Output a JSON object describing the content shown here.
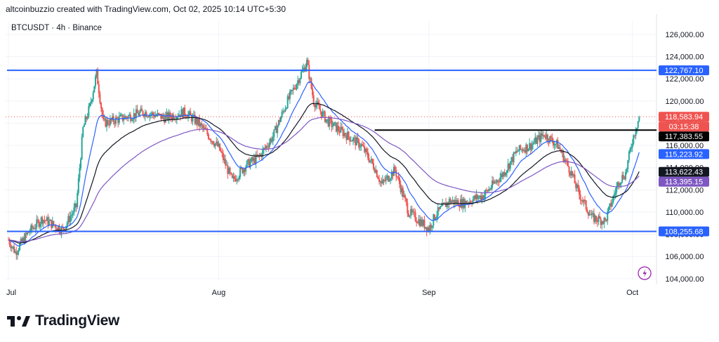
{
  "header": {
    "credit": "altcoinbuzzio created with TradingView.com, Oct 02, 2025 10:14 UTC+5:30",
    "symbol": "BTCUSDT · 4h · Binance"
  },
  "brand": {
    "name": "TradingView",
    "icon": "tradingview-logo-icon"
  },
  "alert_icon": "lightning-bolt-icon",
  "chart_data": {
    "type": "candlestick",
    "title": "BTCUSDT · 4h · Binance",
    "xlabel": "",
    "ylabel": "",
    "ylim": [
      103800,
      127200
    ],
    "x_ticks": [
      "Jul",
      "Aug",
      "Sep",
      "Oct"
    ],
    "y_ticks": [
      "104,000.00",
      "106,000.00",
      "108,000.00",
      "110,000.00",
      "112,000.00",
      "114,000.00",
      "116,000.00",
      "118,000.00",
      "120,000.00",
      "122,000.00",
      "124,000.00",
      "126,000.00"
    ],
    "grid": true,
    "colors": {
      "up": "#26a69a",
      "down": "#ef5350",
      "ema_fast": "#2962ff",
      "ema_mid": "#131722",
      "ema_slow": "#7e57c2",
      "level": "#2962ff",
      "price": "#ef5350"
    },
    "price_path": [
      [
        "Jul 1",
        107500
      ],
      [
        "Jul 2",
        106400
      ],
      [
        "Jul 4",
        108200
      ],
      [
        "Jul 6",
        109400
      ],
      [
        "Jul 9",
        108400
      ],
      [
        "Jul 11",
        110500
      ],
      [
        "Jul 12",
        117500
      ],
      [
        "Jul 13",
        119500
      ],
      [
        "Jul 14",
        122500
      ],
      [
        "Jul 15",
        118000
      ],
      [
        "Jul 18",
        118500
      ],
      [
        "Jul 21",
        119000
      ],
      [
        "Jul 24",
        118500
      ],
      [
        "Jul 27",
        119000
      ],
      [
        "Jul 29",
        118000
      ],
      [
        "Aug 1",
        115800
      ],
      [
        "Aug 3",
        112800
      ],
      [
        "Aug 5",
        114200
      ],
      [
        "Aug 7",
        115000
      ],
      [
        "Aug 9",
        116800
      ],
      [
        "Aug 11",
        119800
      ],
      [
        "Aug 14",
        123500
      ],
      [
        "Aug 15",
        120000
      ],
      [
        "Aug 17",
        118200
      ],
      [
        "Aug 19",
        117300
      ],
      [
        "Aug 22",
        116000
      ],
      [
        "Aug 24",
        114000
      ],
      [
        "Aug 25",
        112500
      ],
      [
        "Aug 27",
        113800
      ],
      [
        "Aug 29",
        110000
      ],
      [
        "Sep 1",
        108500
      ],
      [
        "Sep 2",
        109800
      ],
      [
        "Sep 4",
        111000
      ],
      [
        "Sep 6",
        110800
      ],
      [
        "Sep 9",
        111500
      ],
      [
        "Sep 12",
        113500
      ],
      [
        "Sep 14",
        115500
      ],
      [
        "Sep 16",
        116000
      ],
      [
        "Sep 18",
        117000
      ],
      [
        "Sep 20",
        116000
      ],
      [
        "Sep 22",
        113500
      ],
      [
        "Sep 23",
        111800
      ],
      [
        "Sep 25",
        109500
      ],
      [
        "Sep 27",
        109200
      ],
      [
        "Sep 29",
        112800
      ],
      [
        "Sep 30",
        113500
      ],
      [
        "Oct 1",
        116500
      ],
      [
        "Oct 2",
        118584
      ]
    ],
    "levels": [
      {
        "label": "122,767.10",
        "value": 122767.1,
        "color": "#2962ff"
      },
      {
        "label": "108,255.68",
        "value": 108255.68,
        "color": "#2962ff"
      },
      {
        "label": "117,383.55",
        "value": 117383.55,
        "color": "#000000",
        "from": "Aug 24"
      }
    ],
    "price_labels": [
      {
        "text": "118,583.94",
        "value": 118583.94,
        "bg": "#ef5350",
        "fg": "#ffffff"
      },
      {
        "text": "03:15:38",
        "value": 118583.94,
        "bg": "#ef5350",
        "fg": "#ffffff",
        "sub": true
      },
      {
        "text": "117,383.55",
        "value": 117383.55,
        "bg": "#000000",
        "fg": "#ffffff"
      },
      {
        "text": "115,223.92",
        "value": 115223.92,
        "bg": "#2962ff",
        "fg": "#ffffff"
      },
      {
        "text": "113,622.43",
        "value": 113622.43,
        "bg": "#131722",
        "fg": "#ffffff"
      },
      {
        "text": "113,395.15",
        "value": 113395.15,
        "bg": "#7e57c2",
        "fg": "#ffffff"
      },
      {
        "text": "122,767.10",
        "value": 122767.1,
        "bg": "#2962ff",
        "fg": "#ffffff"
      },
      {
        "text": "108,255.68",
        "value": 108255.68,
        "bg": "#2962ff",
        "fg": "#ffffff"
      }
    ]
  }
}
